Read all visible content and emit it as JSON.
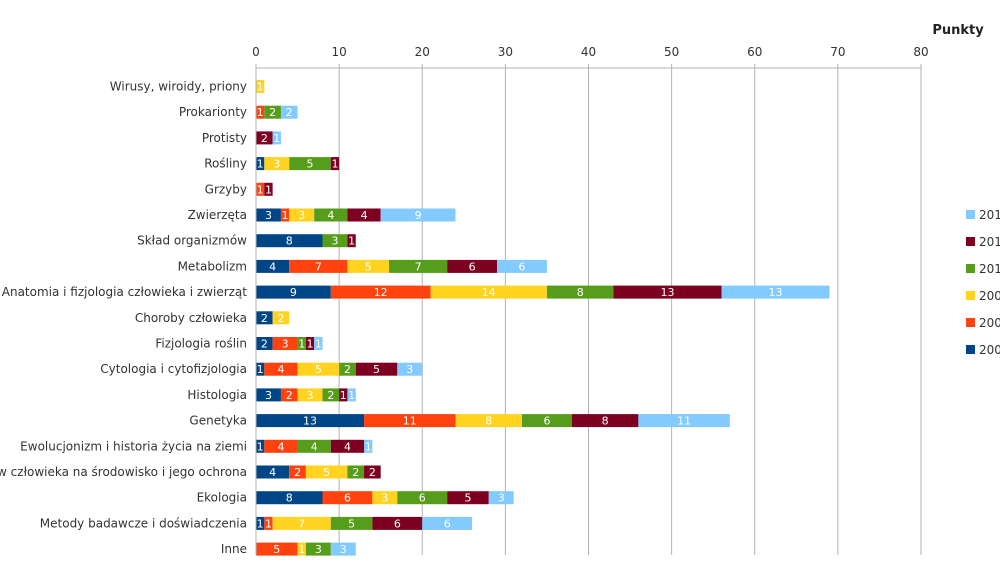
{
  "chart_data": {
    "type": "bar",
    "orientation": "horizontal",
    "stacked": true,
    "xlabel": "Punkty",
    "xlim": [
      0,
      80
    ],
    "xticks": [
      0,
      10,
      20,
      30,
      40,
      50,
      60,
      70,
      80
    ],
    "grid": true,
    "legend_position": "right",
    "categories": [
      "Wirusy, wiroidy, priony",
      "Prokarionty",
      "Protisty",
      "Rośliny",
      "Grzyby",
      "Zwierzęta",
      "Skład organizmów",
      "Metabolizm",
      "Anatomia i fizjologia człowieka i zwierząt",
      "Choroby człowieka",
      "Fizjologia roślin",
      "Cytologia i cytofizjologia",
      "Histologia",
      "Genetyka",
      "Ewolucjonizm i historia życia na ziemi",
      "w człowieka na środowisko i jego ochrona",
      "Ekologia",
      "Metody badawcze i doświadczenia",
      "Inne"
    ],
    "series": [
      {
        "name": "200",
        "color": "#004586",
        "values": [
          0,
          0,
          0,
          1,
          0,
          3,
          8,
          4,
          9,
          2,
          2,
          1,
          3,
          13,
          1,
          4,
          8,
          1,
          0
        ]
      },
      {
        "name": "200",
        "color": "#ff420e",
        "values": [
          0,
          1,
          0,
          0,
          1,
          1,
          0,
          7,
          12,
          0,
          3,
          4,
          2,
          11,
          4,
          2,
          6,
          1,
          5
        ]
      },
      {
        "name": "200",
        "color": "#ffd320",
        "values": [
          1,
          0,
          0,
          3,
          0,
          3,
          0,
          5,
          14,
          2,
          0,
          5,
          3,
          8,
          0,
          5,
          3,
          7,
          1
        ]
      },
      {
        "name": "201",
        "color": "#579d1c",
        "values": [
          0,
          2,
          0,
          5,
          0,
          4,
          3,
          7,
          8,
          0,
          1,
          2,
          2,
          6,
          4,
          2,
          6,
          5,
          3
        ]
      },
      {
        "name": "201",
        "color": "#7e0021",
        "values": [
          0,
          0,
          2,
          1,
          1,
          4,
          1,
          6,
          13,
          0,
          1,
          5,
          1,
          8,
          4,
          2,
          5,
          6,
          0
        ]
      },
      {
        "name": "201",
        "color": "#83caff",
        "values": [
          0,
          2,
          1,
          0,
          0,
          9,
          0,
          6,
          13,
          0,
          1,
          3,
          1,
          11,
          1,
          0,
          3,
          6,
          3
        ]
      }
    ]
  }
}
